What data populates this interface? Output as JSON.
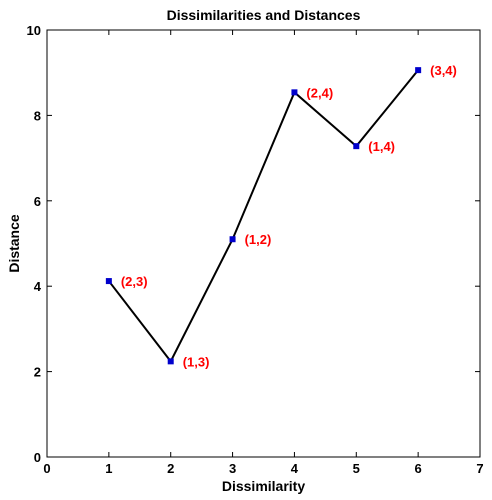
{
  "chart_data": {
    "type": "line",
    "title": "Dissimilarities and Distances",
    "xlabel": "Dissimilarity",
    "ylabel": "Distance",
    "xlim": [
      0,
      7
    ],
    "ylim": [
      0,
      10
    ],
    "xticks": [
      0,
      1,
      2,
      3,
      4,
      5,
      6,
      7
    ],
    "yticks": [
      0,
      2,
      4,
      6,
      8,
      10
    ],
    "grid": false,
    "legend": "none",
    "series": [
      {
        "x": [
          1,
          2,
          3,
          4,
          5,
          6
        ],
        "y": [
          4.12,
          2.24,
          5.1,
          8.54,
          7.28,
          9.06
        ],
        "labels": [
          "(2,3)",
          "(1,3)",
          "(1,2)",
          "(2,4)",
          "(1,4)",
          "(3,4)"
        ]
      }
    ],
    "colors": {
      "line": "#000000",
      "marker": "#0000cc",
      "label": "#ff0000"
    }
  }
}
